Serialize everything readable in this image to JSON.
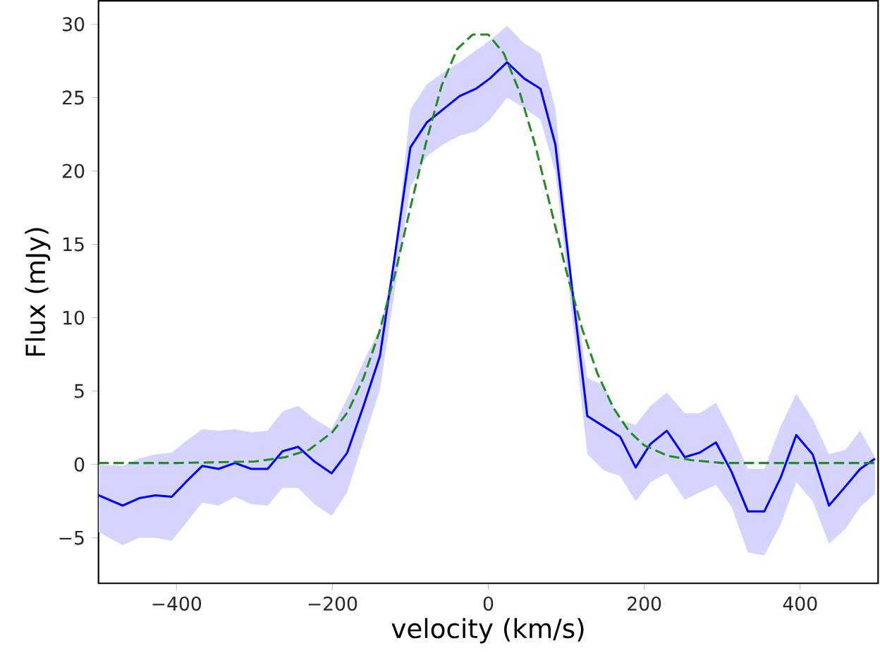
{
  "chart_data": {
    "type": "line",
    "xlabel": "velocity (km/s)",
    "ylabel": "Flux (mJy)",
    "xlim": [
      -500,
      500
    ],
    "ylim": [
      -8.1,
      31.6
    ],
    "xticks": [
      {
        "value": -400,
        "label": "−400"
      },
      {
        "value": -200,
        "label": "−200"
      },
      0,
      200,
      400
    ],
    "yticks": [
      {
        "value": -5,
        "label": "−5"
      },
      0,
      5,
      10,
      15,
      20,
      25,
      30
    ],
    "series": [
      {
        "color": "#0000ff",
        "line_style": "solid",
        "x": [
          -500,
          -469,
          -448,
          -427,
          -406,
          -388,
          -367,
          -346,
          -325,
          -304,
          -283,
          -264,
          -244,
          -223,
          -201,
          -181,
          -160,
          -139,
          -121,
          -100,
          -79,
          -58,
          -37,
          -16,
          2,
          24,
          46,
          67,
          86,
          107,
          127,
          148,
          169,
          189,
          208,
          229,
          252,
          271,
          292,
          312,
          333,
          354,
          375,
          395,
          416,
          437,
          458,
          477,
          496
        ],
        "values": [
          -2.1,
          -2.8,
          -2.3,
          -2.1,
          -2.2,
          -1.2,
          -0.1,
          -0.3,
          0.1,
          -0.3,
          -0.3,
          0.9,
          1.2,
          0.2,
          -0.6,
          0.8,
          4.0,
          7.4,
          13.8,
          21.6,
          23.3,
          24.2,
          25.1,
          25.6,
          26.3,
          27.4,
          26.3,
          25.6,
          21.8,
          12.2,
          3.3,
          2.6,
          1.9,
          -0.2,
          1.4,
          2.3,
          0.5,
          0.8,
          1.5,
          -0.5,
          -3.2,
          -3.2,
          -0.9,
          2.0,
          0.7,
          -2.8,
          -1.5,
          -0.3,
          0.4
        ],
        "upper": [
          0,
          -0.1,
          0.4,
          0.7,
          0.8,
          1.6,
          2.4,
          2.3,
          2.4,
          2.2,
          2.3,
          3.6,
          4.0,
          3.1,
          2.4,
          4.5,
          7.0,
          9.3,
          13.5,
          24.2,
          25.9,
          26.7,
          27.4,
          28.2,
          28.9,
          29.9,
          28.7,
          28.0,
          24.3,
          12.8,
          5.9,
          5.4,
          3.0,
          2.7,
          4.0,
          4.9,
          3.5,
          3.5,
          4.2,
          2.2,
          -0.3,
          -0.3,
          2.6,
          4.8,
          3.1,
          0.7,
          1.0,
          2.3,
          0.5
        ],
        "lower": [
          -4.6,
          -5.5,
          -5.0,
          -5.0,
          -5.2,
          -4.0,
          -2.6,
          -2.8,
          -2.2,
          -2.7,
          -2.8,
          -1.6,
          -1.6,
          -2.7,
          -3.5,
          -1.9,
          1.6,
          5.1,
          11.5,
          18.9,
          21.0,
          21.8,
          22.4,
          22.7,
          23.5,
          25.0,
          24.3,
          23.5,
          19.9,
          10.3,
          0.7,
          -0.4,
          -0.8,
          -2.5,
          -1.2,
          -0.6,
          -2.4,
          -1.9,
          -1.4,
          -2.9,
          -6.0,
          -6.2,
          -4.1,
          -1.2,
          -2.5,
          -5.4,
          -4.4,
          -2.9,
          -2.0
        ]
      },
      {
        "color": "#228b22",
        "line_style": "dashed",
        "x": [
          -500,
          -400,
          -300,
          -260,
          -230,
          -200,
          -180,
          -160,
          -140,
          -120,
          -100,
          -80,
          -60,
          -40,
          -20,
          0,
          20,
          40,
          60,
          80,
          100,
          120,
          140,
          160,
          180,
          200,
          230,
          260,
          300,
          400,
          500
        ],
        "values": [
          0.1,
          0.1,
          0.2,
          0.5,
          1.0,
          2.2,
          3.6,
          5.9,
          9.0,
          12.9,
          17.5,
          21.9,
          25.8,
          28.3,
          29.3,
          29.3,
          28.0,
          25.4,
          21.8,
          17.5,
          13.2,
          9.3,
          6.2,
          3.9,
          2.3,
          1.3,
          0.6,
          0.3,
          0.1,
          0.1,
          0.1
        ]
      }
    ]
  }
}
